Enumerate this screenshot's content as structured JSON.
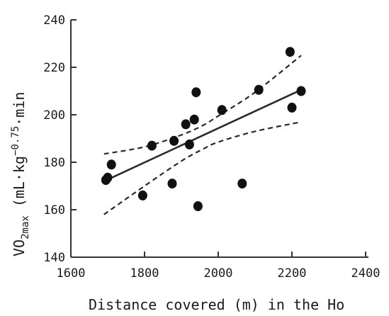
{
  "chart_data": {
    "type": "scatter",
    "xlabel": "Distance covered (m) in the Ho",
    "ylabel_main": "VO",
    "ylabel_sub": "2max",
    "ylabel_units_pre": " (mL·kg",
    "ylabel_units_exp": "−0.75",
    "ylabel_units_post": "·min",
    "xlim": [
      1600,
      2400
    ],
    "ylim": [
      140,
      240
    ],
    "x_ticks": [
      1600,
      1800,
      2000,
      2200,
      2400
    ],
    "y_ticks": [
      140,
      160,
      180,
      200,
      220,
      240
    ],
    "x_tick_labels": [
      "1600",
      "1800",
      "2000",
      "2200",
      "2400"
    ],
    "y_tick_labels": [
      "140",
      "160",
      "180",
      "200",
      "220",
      "240"
    ],
    "points": [
      {
        "x": 1695,
        "y": 172.5
      },
      {
        "x": 1700,
        "y": 173.5
      },
      {
        "x": 1710,
        "y": 179
      },
      {
        "x": 1795,
        "y": 166
      },
      {
        "x": 1820,
        "y": 187
      },
      {
        "x": 1875,
        "y": 171
      },
      {
        "x": 1880,
        "y": 189
      },
      {
        "x": 1912,
        "y": 196
      },
      {
        "x": 1922,
        "y": 187.5
      },
      {
        "x": 1935,
        "y": 198
      },
      {
        "x": 1940,
        "y": 209.5
      },
      {
        "x": 1945,
        "y": 161.5
      },
      {
        "x": 2010,
        "y": 202
      },
      {
        "x": 2065,
        "y": 171
      },
      {
        "x": 2110,
        "y": 210.5
      },
      {
        "x": 2195,
        "y": 226.5
      },
      {
        "x": 2200,
        "y": 203
      },
      {
        "x": 2225,
        "y": 210
      }
    ],
    "fit_line": [
      {
        "x": 1690,
        "y": 172
      },
      {
        "x": 2225,
        "y": 210.5
      }
    ],
    "ci_upper": [
      {
        "x": 1690,
        "y": 183.5
      },
      {
        "x": 1800,
        "y": 186.5
      },
      {
        "x": 1900,
        "y": 191.5
      },
      {
        "x": 1958,
        "y": 195.5
      },
      {
        "x": 2000,
        "y": 199.5
      },
      {
        "x": 2100,
        "y": 209.5
      },
      {
        "x": 2225,
        "y": 225
      }
    ],
    "ci_lower": [
      {
        "x": 1690,
        "y": 158
      },
      {
        "x": 1800,
        "y": 170
      },
      {
        "x": 1900,
        "y": 180.5
      },
      {
        "x": 1958,
        "y": 185.5
      },
      {
        "x": 2000,
        "y": 188.5
      },
      {
        "x": 2100,
        "y": 193
      },
      {
        "x": 2225,
        "y": 197
      }
    ],
    "grid": false
  }
}
